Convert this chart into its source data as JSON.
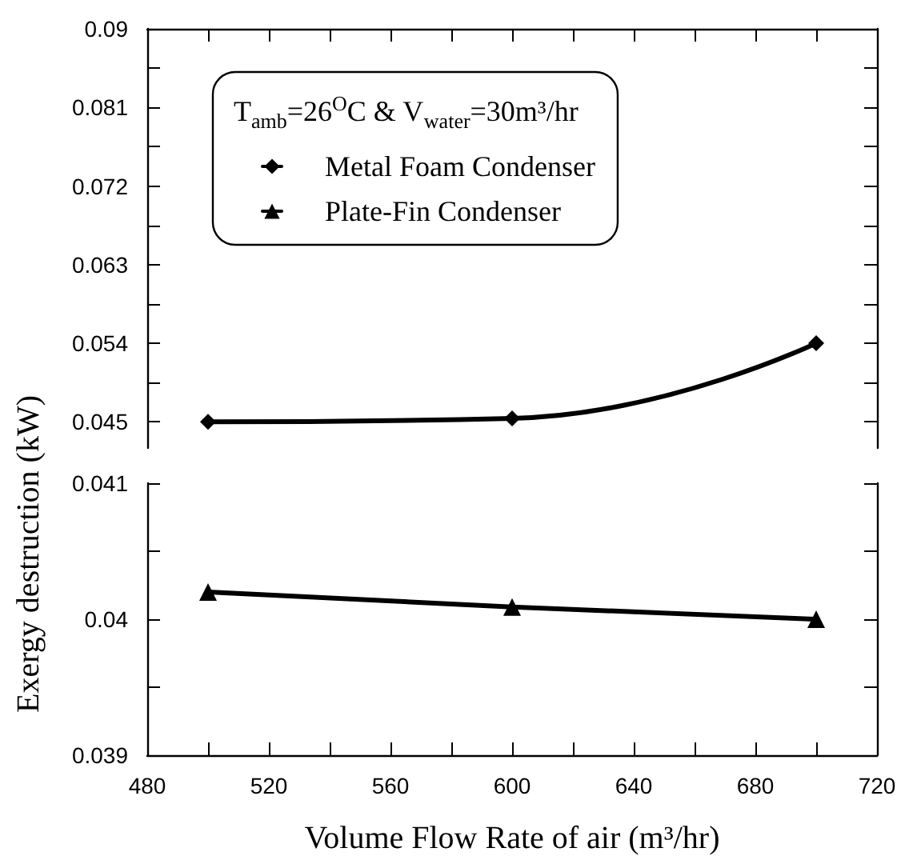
{
  "chart_data": [
    {
      "type": "line",
      "ylabel": "Exergy destruction (kW)",
      "legend_title": "T$_{amb}$=26$^{O}$C & V$_{water}$=30m³/hr",
      "legend": "top left",
      "tick_labels": "y",
      "grid": false,
      "line_style": "solid",
      "x": [
        500,
        600,
        700
      ],
      "xlim": [
        480,
        720
      ],
      "ylim": [
        0.042,
        0.09
      ],
      "yticks": [
        0.045,
        {
          "value": 0.0495,
          "label": null
        },
        0.054,
        {
          "value": 0.0585,
          "label": null
        },
        0.063,
        {
          "value": 0.0675,
          "label": null
        },
        0.072,
        {
          "value": 0.0765,
          "label": null
        },
        0.081,
        {
          "value": 0.0855,
          "label": null
        },
        0.09
      ],
      "series": [
        {
          "name": "Metal Foam Condenser",
          "color": "#000000",
          "marker": "diamond",
          "values": [
            0.045,
            0.0454,
            0.054
          ]
        }
      ]
    },
    {
      "type": "line",
      "xlabel": "Volume Flow Rate of air (m³/hr)",
      "grid": false,
      "line_style": "solid",
      "x": [
        500,
        600,
        700
      ],
      "xlim": [
        480,
        720
      ],
      "xticks": [
        480,
        {
          "value": 500,
          "label": null
        },
        520,
        {
          "value": 540,
          "label": null
        },
        560,
        {
          "value": 580,
          "label": null
        },
        600,
        {
          "value": 620,
          "label": null
        },
        640,
        {
          "value": 660,
          "label": null
        },
        680,
        {
          "value": 700,
          "label": null
        },
        720
      ],
      "ylim": [
        0.039,
        0.041
      ],
      "yticks": [
        0.039,
        {
          "value": 0.0395,
          "label": null
        },
        0.04,
        {
          "value": 0.0405,
          "label": null
        },
        0.041
      ],
      "series": [
        {
          "name": "Plate-Fin Condenser",
          "color": "#000000",
          "marker": "triangle",
          "values": [
            0.0402,
            0.04009,
            0.04
          ]
        }
      ]
    }
  ]
}
